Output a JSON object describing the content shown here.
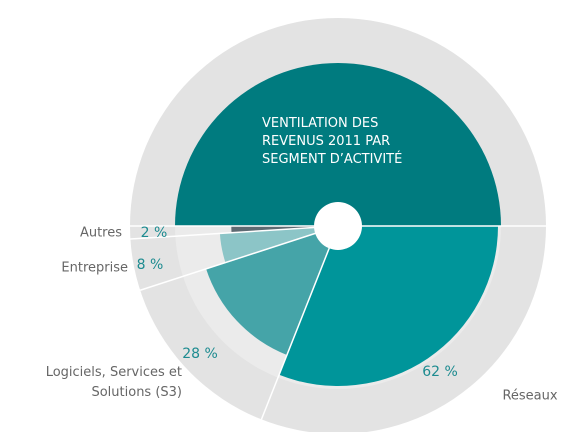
{
  "chart_data": {
    "type": "pie",
    "title": [
      "VENTILATION DES",
      "REVENUS 2011 PAR",
      "SEGMENT D’ACTIVITÉ"
    ],
    "categories": [
      "Réseaux",
      "Logiciels, Services et Solutions (S3)",
      "Entreprise",
      "Autres"
    ],
    "values": [
      62,
      28,
      8,
      2
    ],
    "value_labels": [
      "62 %",
      "28 %",
      "8 %",
      "2 %"
    ],
    "colors": [
      "#00959a",
      "#45a4a8",
      "#8cc5c7",
      "#5e6a72"
    ],
    "title_color": "#007b7f"
  }
}
